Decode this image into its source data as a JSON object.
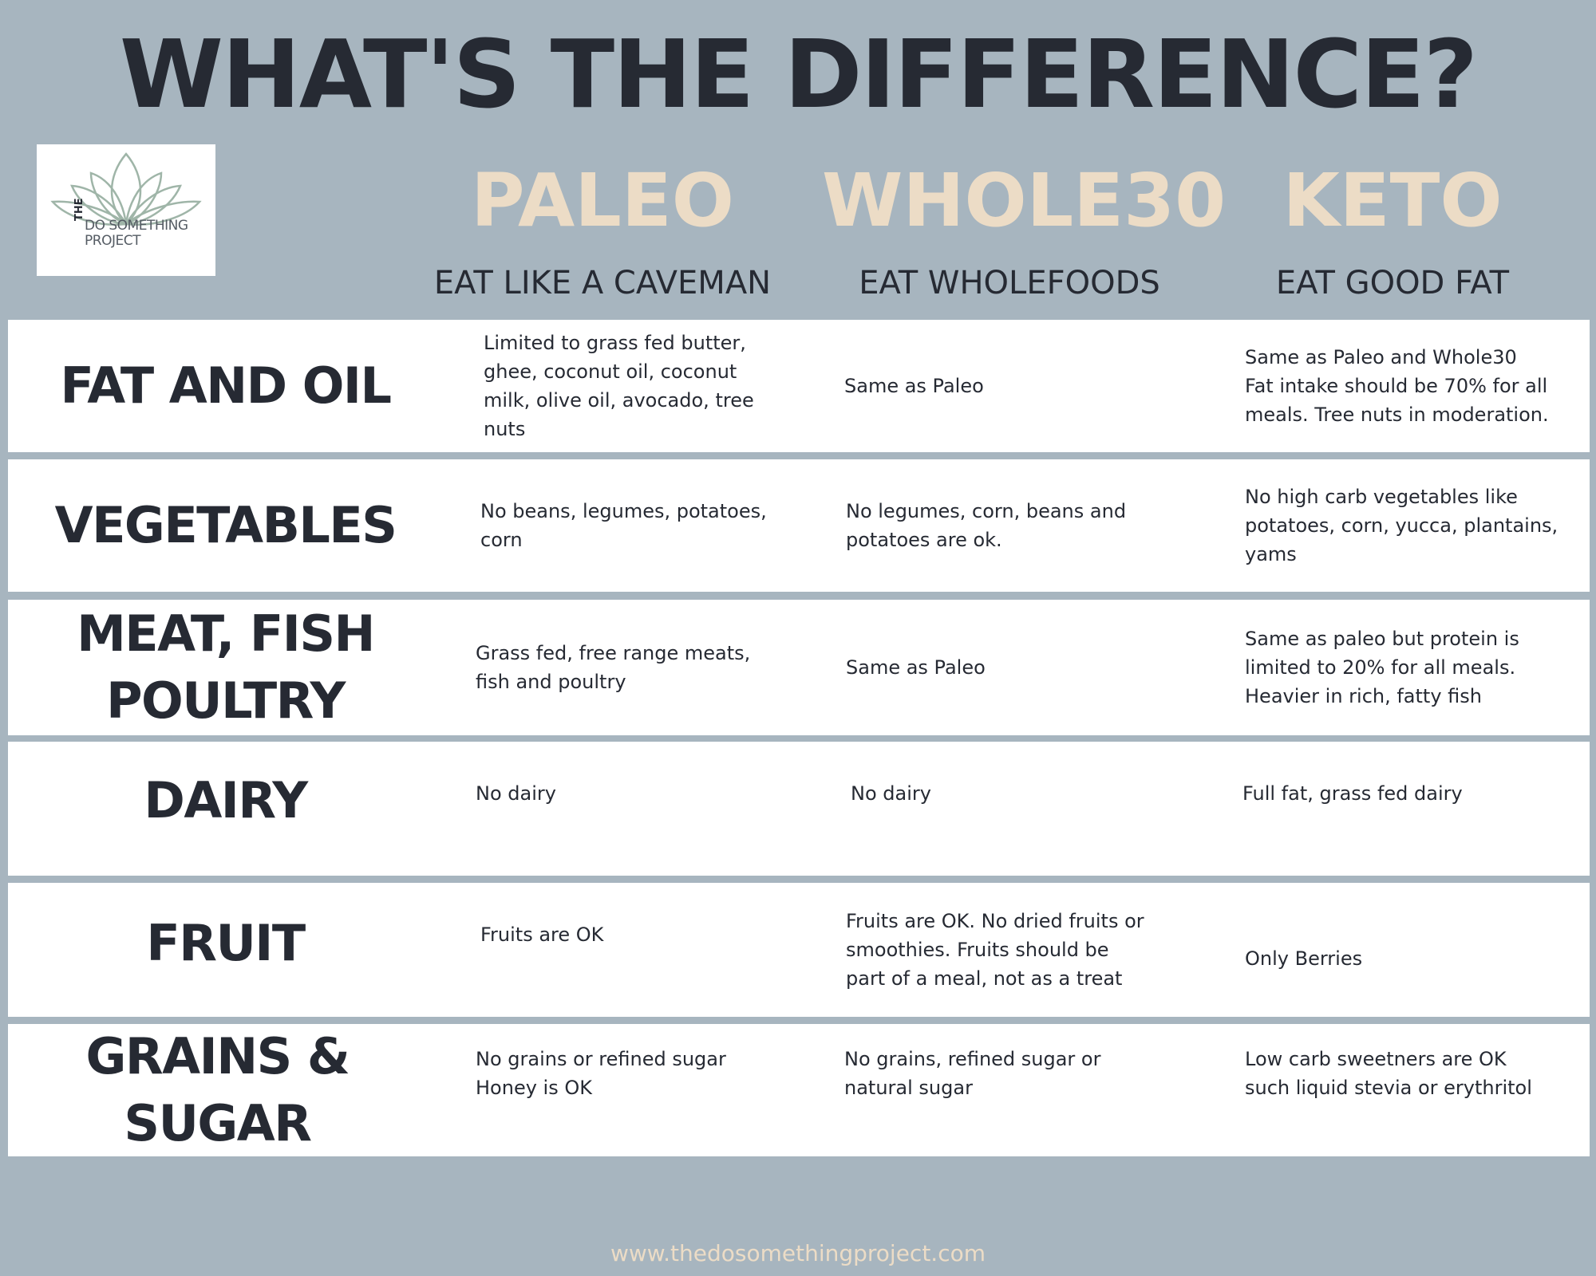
{
  "title": "WHAT'S THE DIFFERENCE?",
  "logo": {
    "prefix": "THE",
    "line1": "DO SOMETHING",
    "line2": "PROJECT",
    "icon": "lotus-icon",
    "icon_color": "#9fb5a8"
  },
  "diets": [
    {
      "name": "PALEO",
      "motto": "EAT LIKE A CAVEMAN"
    },
    {
      "name": "WHOLE30",
      "motto": "EAT WHOLEFOODS"
    },
    {
      "name": "KETO",
      "motto": "EAT GOOD FAT"
    }
  ],
  "rows": [
    {
      "category": "FAT AND OIL",
      "paleo": "Limited to grass fed butter,\nghee, coconut oil, coconut\nmilk, olive oil, avocado, tree\nnuts",
      "whole30": "Same as Paleo",
      "keto": "Same as Paleo and Whole30\nFat intake should be 70% for all\nmeals. Tree nuts in moderation."
    },
    {
      "category": "VEGETABLES",
      "paleo": "No beans, legumes, potatoes,\ncorn",
      "whole30": "No legumes, corn, beans and\npotatoes are ok.",
      "keto": "No high carb vegetables like\npotatoes, corn, yucca, plantains,\nyams"
    },
    {
      "category": "MEAT, FISH\nPOULTRY",
      "paleo": "Grass fed, free range meats,\nfish and poultry",
      "whole30": "Same as Paleo",
      "keto": "Same as paleo but protein is\nlimited to 20% for all meals.\nHeavier in rich, fatty fish"
    },
    {
      "category": "DAIRY",
      "paleo": "No dairy",
      "whole30": "No dairy",
      "keto": "Full fat, grass fed dairy"
    },
    {
      "category": "FRUIT",
      "paleo": "Fruits are OK",
      "whole30": "Fruits are OK. No dried fruits or\nsmoothies.  Fruits should be\npart of a meal, not as a treat",
      "keto": "Only Berries"
    },
    {
      "category": "GRAINS &\nSUGAR",
      "paleo": "No grains or refined sugar\nHoney is OK",
      "whole30": "No grains, refined sugar or\nnatural sugar",
      "keto": "Low carb sweetners are OK\nsuch liquid stevia or erythritol"
    }
  ],
  "footer": "www.thedosomethingproject.com",
  "colors": {
    "background": "#a7b5bf",
    "dark_text": "#262a33",
    "accent": "#ecdcc6",
    "row_bg": "#ffffff"
  }
}
